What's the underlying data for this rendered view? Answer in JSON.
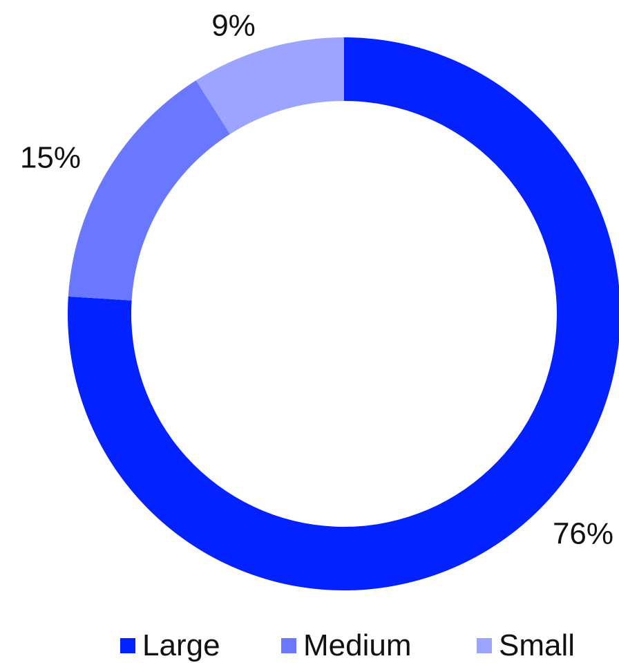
{
  "chart_data": {
    "type": "pie",
    "variant": "donut",
    "categories": [
      "Large",
      "Medium",
      "Small"
    ],
    "values": [
      76,
      15,
      9
    ],
    "value_labels": [
      "76%",
      "15%",
      "9%"
    ],
    "colors": [
      "#0422ff",
      "#6a78ff",
      "#9ca4ff"
    ],
    "title": "",
    "legend_position": "bottom",
    "start_angle": "top",
    "direction": "clockwise"
  },
  "legend": {
    "items": [
      {
        "label": "Large",
        "color": "#0422ff"
      },
      {
        "label": "Medium",
        "color": "#6a78ff"
      },
      {
        "label": "Small",
        "color": "#9ca4ff"
      }
    ]
  }
}
